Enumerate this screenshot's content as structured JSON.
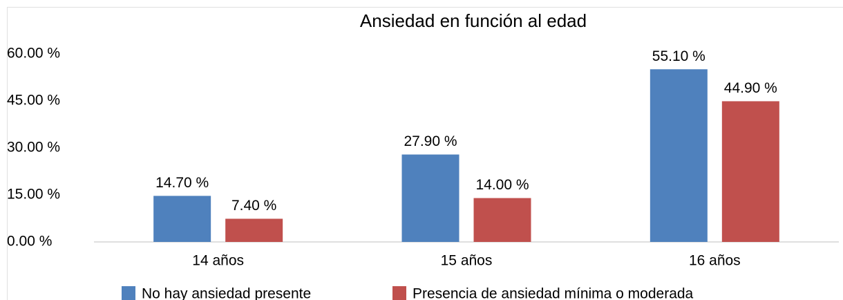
{
  "chart_data": {
    "type": "bar",
    "title": "Ansiedad en función al edad",
    "categories": [
      "14 años",
      "15 años",
      "16 años"
    ],
    "series": [
      {
        "name": "No hay ansiedad presente",
        "color": "#4f81bd",
        "values": [
          14.7,
          27.9,
          55.1
        ],
        "value_labels": [
          "14.70 %",
          "27.90 %",
          "55.10 %"
        ]
      },
      {
        "name": "Presencia de ansiedad mínima o moderada",
        "color": "#c0504d",
        "values": [
          7.4,
          14.0,
          44.9
        ],
        "value_labels": [
          "7.40 %",
          "14.00 %",
          "44.90 %"
        ]
      }
    ],
    "ylim": [
      0,
      60
    ],
    "yticks": [
      {
        "value": 0,
        "label": "0.00 %"
      },
      {
        "value": 15,
        "label": "15.00 %"
      },
      {
        "value": 30,
        "label": "30.00 %"
      },
      {
        "value": 45,
        "label": "45.00 %"
      },
      {
        "value": 60,
        "label": "60.00 %"
      }
    ],
    "grid": false,
    "legend": "bottom"
  }
}
